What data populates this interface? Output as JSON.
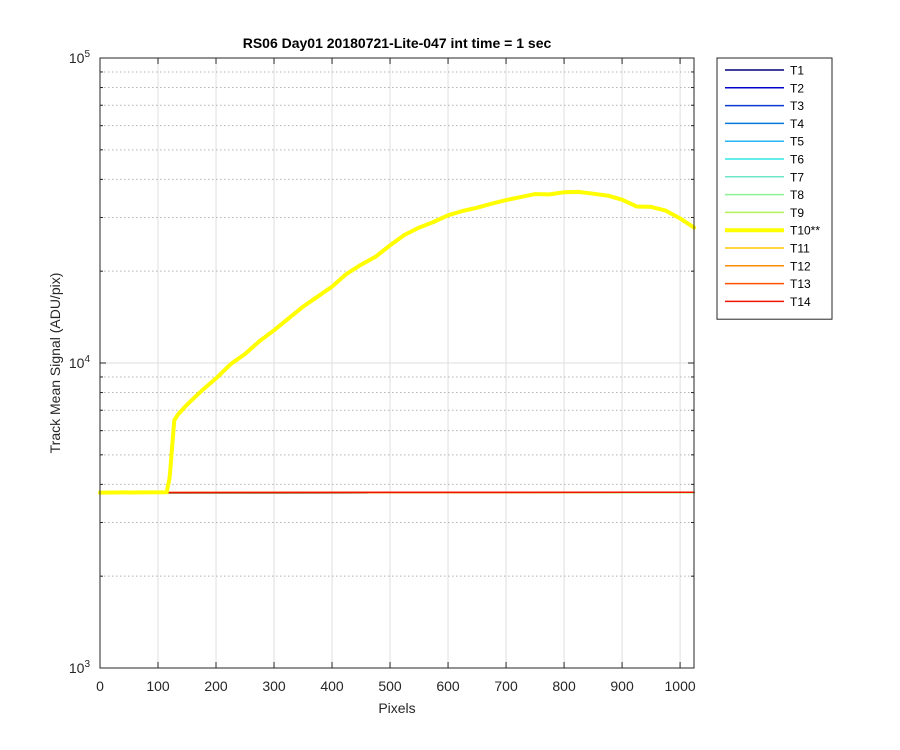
{
  "chart_data": {
    "type": "line",
    "title": "RS06 Day01 20180721-Lite-047 int time = 1 sec",
    "xlabel": "Pixels",
    "ylabel": "Track Mean Signal (ADU/pix)",
    "xlim": [
      0,
      1024
    ],
    "ylim": [
      1000,
      100000
    ],
    "yscale": "log",
    "grid": true,
    "legend_position": "outside-right",
    "x_ticks": [
      "0",
      "100",
      "200",
      "300",
      "400",
      "500",
      "600",
      "700",
      "800",
      "900",
      "1000"
    ],
    "y_ticks": [
      {
        "base": "10",
        "exp": "3"
      },
      {
        "base": "10",
        "exp": "4"
      },
      {
        "base": "10",
        "exp": "5"
      }
    ],
    "series": [
      {
        "name": "T1",
        "color": "#00007a",
        "width": 1.5,
        "x": [
          0,
          1024
        ],
        "y": [
          3750,
          3760
        ]
      },
      {
        "name": "T2",
        "color": "#0000c8",
        "width": 1.5,
        "x": [
          0,
          1024
        ],
        "y": [
          3750,
          3760
        ]
      },
      {
        "name": "T3",
        "color": "#0a3cd2",
        "width": 1.5,
        "x": [
          0,
          1024
        ],
        "y": [
          3750,
          3760
        ]
      },
      {
        "name": "T4",
        "color": "#0a78dc",
        "width": 1.5,
        "x": [
          0,
          1024
        ],
        "y": [
          3750,
          3760
        ]
      },
      {
        "name": "T5",
        "color": "#28b4f0",
        "width": 1.5,
        "x": [
          0,
          1024
        ],
        "y": [
          3750,
          3760
        ]
      },
      {
        "name": "T6",
        "color": "#32e6e6",
        "width": 1.5,
        "x": [
          0,
          1024
        ],
        "y": [
          3750,
          3760
        ]
      },
      {
        "name": "T7",
        "color": "#6ee6c8",
        "width": 1.5,
        "x": [
          0,
          1024
        ],
        "y": [
          3750,
          3760
        ]
      },
      {
        "name": "T8",
        "color": "#8cf096",
        "width": 1.5,
        "x": [
          0,
          1024
        ],
        "y": [
          3750,
          3760
        ]
      },
      {
        "name": "T9",
        "color": "#b4f05a",
        "width": 1.5,
        "x": [
          0,
          1024
        ],
        "y": [
          3750,
          3760
        ]
      },
      {
        "name": "T10**",
        "color": "#ffff00",
        "width": 4,
        "x": [
          0,
          115,
          120,
          128,
          135,
          150,
          175,
          200,
          225,
          250,
          275,
          300,
          325,
          350,
          375,
          400,
          425,
          450,
          475,
          500,
          525,
          550,
          575,
          600,
          625,
          650,
          675,
          700,
          725,
          750,
          775,
          800,
          825,
          850,
          875,
          900,
          925,
          950,
          975,
          1000,
          1024
        ],
        "y": [
          3760,
          3770,
          4200,
          6500,
          6800,
          7300,
          8100,
          8900,
          9900,
          10700,
          11800,
          12800,
          14000,
          15300,
          16500,
          17800,
          19600,
          21000,
          22300,
          24300,
          26300,
          27800,
          29000,
          30500,
          31500,
          32300,
          33300,
          34200,
          35000,
          35800,
          35700,
          36300,
          36400,
          35900,
          35400,
          34300,
          32600,
          32500,
          31600,
          29800,
          27800
        ]
      },
      {
        "name": "T11",
        "color": "#ffc800",
        "width": 1.5,
        "x": [
          0,
          1024
        ],
        "y": [
          3760,
          3770
        ]
      },
      {
        "name": "T12",
        "color": "#ff8c00",
        "width": 1.5,
        "x": [
          0,
          1024
        ],
        "y": [
          3760,
          3770
        ]
      },
      {
        "name": "T13",
        "color": "#ff5000",
        "width": 1.5,
        "x": [
          0,
          1024
        ],
        "y": [
          3760,
          3770
        ]
      },
      {
        "name": "T14",
        "color": "#f01400",
        "width": 1.5,
        "x": [
          0,
          1024
        ],
        "y": [
          3760,
          3770
        ]
      }
    ]
  }
}
